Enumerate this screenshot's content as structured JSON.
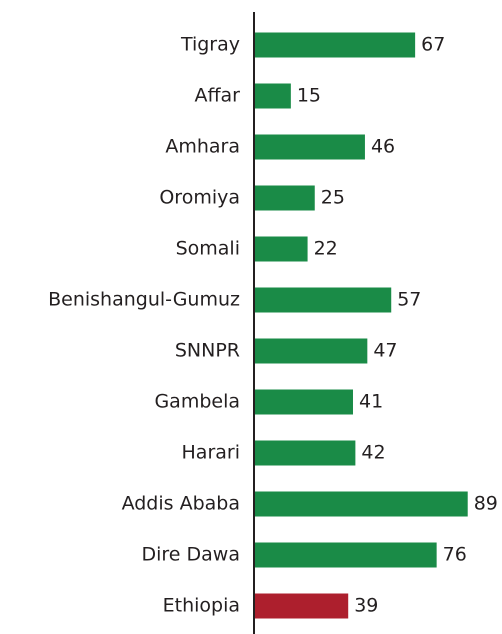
{
  "chart_data": {
    "type": "hbar",
    "categories": [
      "Tigray",
      "Affar",
      "Amhara",
      "Oromiya",
      "Somali",
      "Benishangul-Gumuz",
      "SNNPR",
      "Gambela",
      "Harari",
      "Addis Ababa",
      "Dire Dawa",
      "Ethiopia"
    ],
    "values": [
      67,
      15,
      46,
      25,
      22,
      57,
      47,
      41,
      42,
      89,
      76,
      39
    ],
    "colors": [
      "#1a8b47",
      "#1a8b47",
      "#1a8b47",
      "#1a8b47",
      "#1a8b47",
      "#1a8b47",
      "#1a8b47",
      "#1a8b47",
      "#1a8b47",
      "#1a8b47",
      "#1a8b47",
      "#ad1f2d"
    ]
  }
}
